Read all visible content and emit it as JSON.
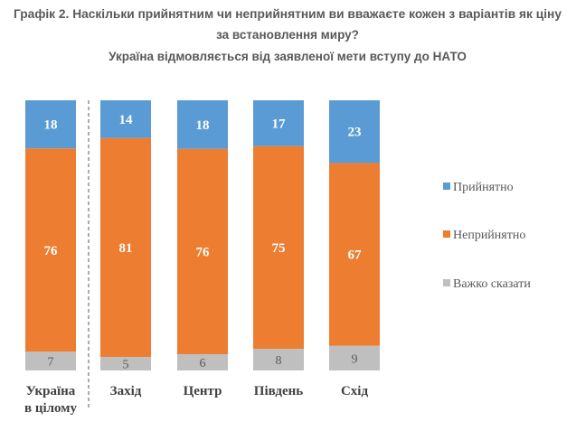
{
  "chart_data": {
    "type": "bar",
    "stacked": true,
    "title_line1": "Графік 2. Наскільки прийнятним чи неприйнятним ви вважаєте кожен з варіантів як ціну",
    "title_line2": "за встановлення миру?",
    "subtitle": "Україна відмовляється від заявленої мети вступу до НАТО",
    "categories": [
      [
        "Україна",
        "в цілому"
      ],
      [
        "Захід"
      ],
      [
        "Центр"
      ],
      [
        "Південь"
      ],
      [
        "Схід"
      ]
    ],
    "series": [
      {
        "name": "Прийнятно",
        "color": "#5B9BD5",
        "values": [
          18,
          14,
          18,
          17,
          23
        ]
      },
      {
        "name": "Неприйнятно",
        "color": "#ED7D31",
        "values": [
          76,
          81,
          76,
          75,
          67
        ]
      },
      {
        "name": "Важко сказати",
        "color": "#BFBFBF",
        "values": [
          7,
          5,
          6,
          8,
          9
        ]
      }
    ],
    "legend_position": "right",
    "grid": false,
    "separator_after_first_category": true
  }
}
